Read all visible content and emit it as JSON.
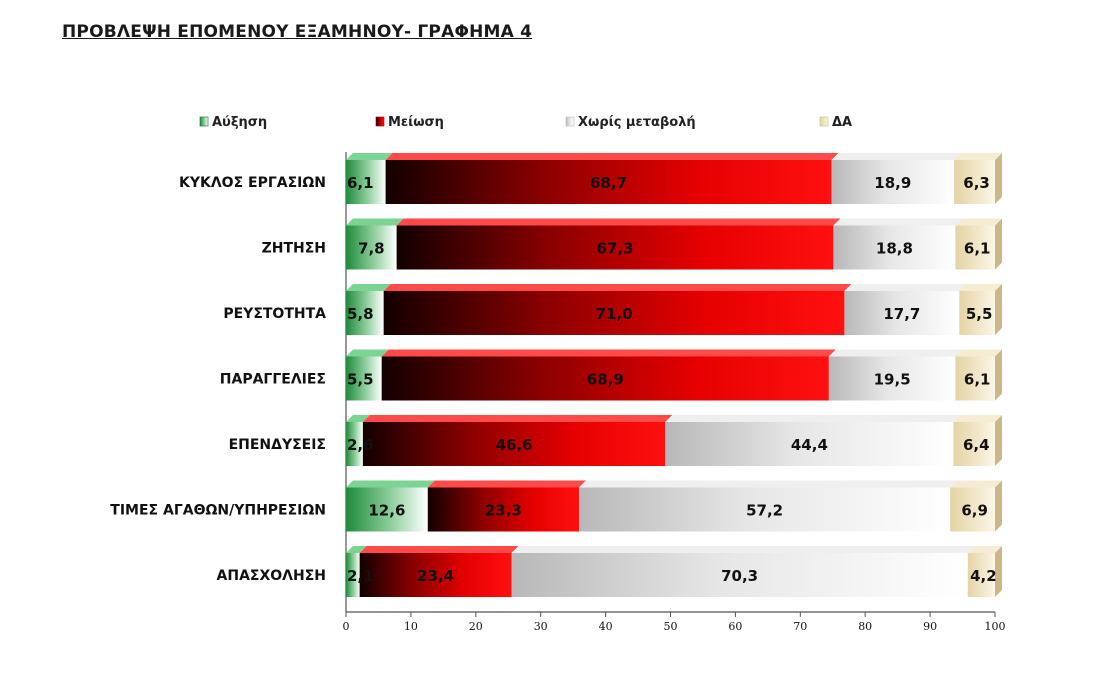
{
  "page": {
    "title": "ΠΡΟΒΛΕΨΗ ΕΠΟΜΕΝΟΥ ΕΞΑΜΗΝΟΥ- ΓΡΑΦΗΜΑ 4"
  },
  "chart_data": {
    "type": "bar",
    "orientation": "horizontal",
    "stacked": true,
    "title": "",
    "xlabel": "",
    "ylabel": "",
    "xlim": [
      0,
      100
    ],
    "xticks": [
      0,
      10,
      20,
      30,
      40,
      50,
      60,
      70,
      80,
      90,
      100
    ],
    "grid": false,
    "legend_position": "top",
    "categories": [
      "ΚΥΚΛΟΣ ΕΡΓΑΣΙΩΝ",
      "ΖΗΤΗΣΗ",
      "ΡΕΥΣΤΟΤΗΤΑ",
      "ΠΑΡΑΓΓΕΛΙΕΣ",
      "ΕΠΕΝΔΥΣΕΙΣ",
      "ΤΙΜΕΣ ΑΓΑΘΩΝ/ΥΠΗΡΕΣΙΩΝ",
      "ΑΠΑΣΧΟΛΗΣΗ"
    ],
    "series": [
      {
        "name": "Αύξηση",
        "color": "#2e9a4a",
        "values": [
          6.1,
          7.8,
          5.8,
          5.5,
          2.6,
          12.6,
          2.1
        ],
        "labels": [
          "6,1",
          "7,8",
          "5,8",
          "5,5",
          "2,6",
          "12,6",
          "2,1"
        ]
      },
      {
        "name": "Μείωση",
        "color": "#e60000",
        "values": [
          68.7,
          67.3,
          71.0,
          68.9,
          46.6,
          23.3,
          23.4
        ],
        "labels": [
          "68,7",
          "67,3",
          "71,0",
          "68,9",
          "46,6",
          "23,3",
          "23,4"
        ]
      },
      {
        "name": "Χωρίς μεταβολή",
        "color": "#d9d9d9",
        "values": [
          18.9,
          18.8,
          17.7,
          19.5,
          44.4,
          57.2,
          70.3
        ],
        "labels": [
          "18,9",
          "18,8",
          "17,7",
          "19,5",
          "44,4",
          "57,2",
          "70,3"
        ]
      },
      {
        "name": "ΔΑ",
        "color": "#efe3c2",
        "values": [
          6.3,
          6.1,
          5.5,
          6.1,
          6.4,
          6.9,
          4.2
        ],
        "labels": [
          "6,3",
          "6,1",
          "5,5",
          "6,1",
          "6,4",
          "6,9",
          "4,2"
        ]
      }
    ]
  }
}
